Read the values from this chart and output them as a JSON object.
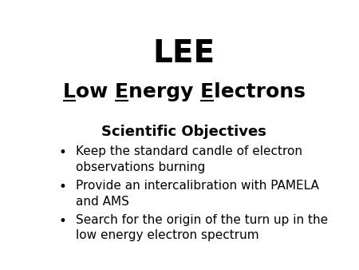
{
  "background_color": "#ffffff",
  "title_line1": "LEE",
  "title_line2": "Low Energy Electrons",
  "section_header": "Scientific Objectives",
  "bullet_points": [
    "Keep the standard candle of electron\nobservations burning",
    "Provide an intercalibration with PAMELA\nand AMS",
    "Search for the origin of the turn up in the\nlow energy electron spectrum"
  ],
  "title_fontsize": 28,
  "subtitle_fontsize": 18,
  "header_fontsize": 13,
  "bullet_fontsize": 11,
  "text_color": "#000000"
}
